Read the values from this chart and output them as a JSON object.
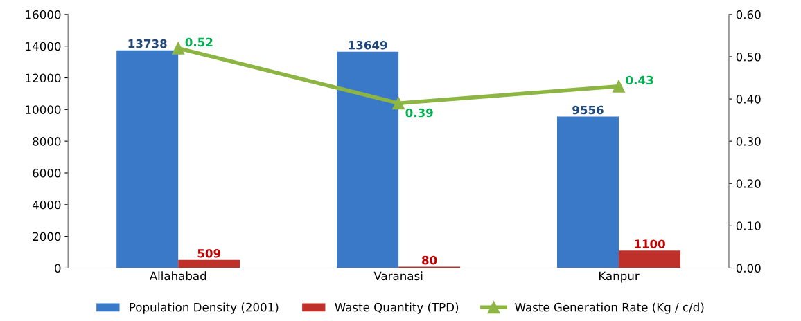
{
  "chart_data": {
    "type": "bar",
    "categories": [
      "Allahabad",
      "Varanasi",
      "Kanpur"
    ],
    "series": [
      {
        "name": "Population Density (2001)",
        "color": "#3a78c8",
        "values": [
          13738,
          13649,
          9556
        ]
      },
      {
        "name": "Waste Quantity (TPD)",
        "color": "#c0302b",
        "values": [
          509,
          80,
          1100
        ]
      },
      {
        "name": "Waste Generation Rate (Kg / c/d)",
        "type": "line",
        "axis": "y2",
        "color": "#8db543",
        "values": [
          0.52,
          0.39,
          0.43
        ]
      }
    ],
    "ylim": [
      0,
      16000
    ],
    "yticks": [
      0,
      2000,
      4000,
      6000,
      8000,
      10000,
      12000,
      14000,
      16000
    ],
    "y2lim": [
      0,
      0.6
    ],
    "y2ticks": [
      {
        "value": 0,
        "label": "0.00"
      },
      {
        "value": 0.1,
        "label": "0.10"
      },
      {
        "value": 0.2,
        "label": "0.20"
      },
      {
        "value": 0.3,
        "label": "0.30"
      },
      {
        "value": 0.4,
        "label": "0.40"
      },
      {
        "value": 0.5,
        "label": "0.50"
      },
      {
        "value": 0.6,
        "label": "0.60"
      }
    ],
    "data_labels": true,
    "legend": "bottom",
    "grid": false,
    "marker": "triangle",
    "line_style": "solid"
  }
}
